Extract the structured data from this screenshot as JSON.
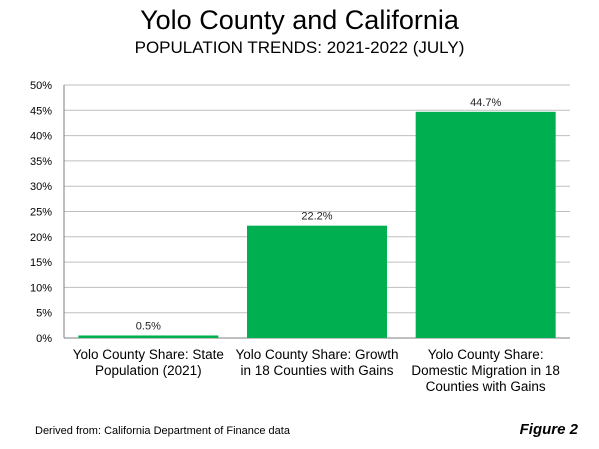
{
  "chart_data": {
    "type": "bar",
    "title": "Yolo County and California",
    "subtitle": "POPULATION TRENDS: 2021-2022 (JULY)",
    "categories": [
      [
        "Yolo County Share: State",
        "Population (2021)"
      ],
      [
        "Yolo County Share: Growth",
        "in 18 Counties with Gains"
      ],
      [
        "Yolo County Share:",
        "Domestic Migration in 18",
        "Counties with Gains"
      ]
    ],
    "values": [
      0.5,
      22.2,
      44.7
    ],
    "data_labels": [
      "0.5%",
      "22.2%",
      "44.7%"
    ],
    "ylim": [
      0,
      50
    ],
    "yticks": [
      0,
      5,
      10,
      15,
      20,
      25,
      30,
      35,
      40,
      45,
      50
    ],
    "ytick_labels": [
      "0%",
      "5%",
      "10%",
      "15%",
      "20%",
      "25%",
      "30%",
      "35%",
      "40%",
      "45%",
      "50%"
    ],
    "grid": true,
    "xlabel": "",
    "ylabel": "",
    "bar_color": "#00b050",
    "grid_color": "#bfbfbf"
  },
  "footnote": "Derived from: California Department of Finance data",
  "figure_label": "Figure 2"
}
